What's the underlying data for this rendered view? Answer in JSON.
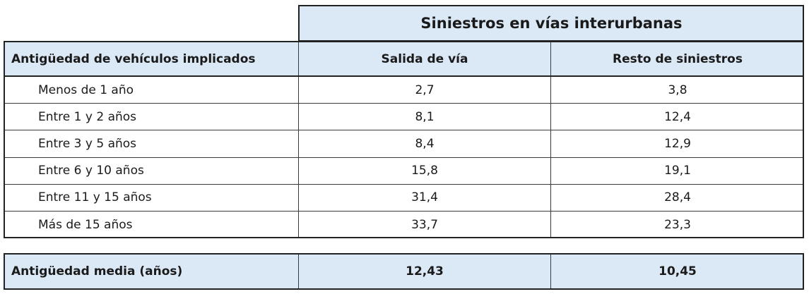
{
  "table": {
    "title": "Siniestros en vías interurbanas",
    "header": [
      "Antigüedad de vehículos implicados",
      "Salida de vía",
      "Resto de siniestros"
    ],
    "rows": [
      [
        "Menos de 1 año",
        "2,7",
        "3,8"
      ],
      [
        "Entre 1 y 2 años",
        "8,1",
        "12,4"
      ],
      [
        "Entre 3 y 5 años",
        "8,4",
        "12,9"
      ],
      [
        "Entre 6 y 10 años",
        "15,8",
        "19,1"
      ],
      [
        "Entre 11 y 15 años",
        "31,4",
        "28,4"
      ],
      [
        "Más de 15 años",
        "33,7",
        "23,3"
      ]
    ],
    "summary": [
      "Antigüedad media (años)",
      "12,43",
      "10,45"
    ]
  }
}
